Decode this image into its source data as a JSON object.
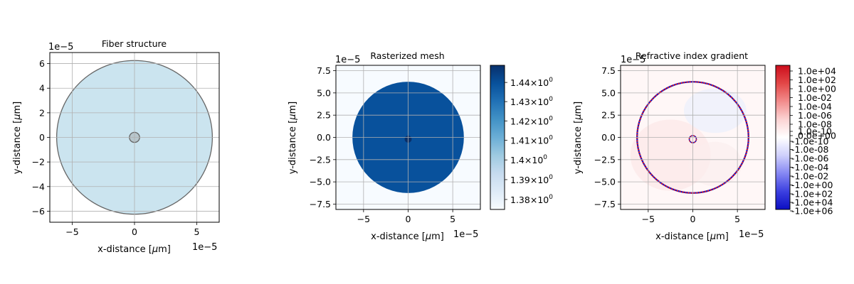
{
  "chart_data": [
    {
      "type": "scatter",
      "title": "Fiber structure",
      "xlabel": "x-distance [$\\mu$m]",
      "ylabel": "y-distance [$\\mu$m]",
      "x_offset_label": "1e−5",
      "y_offset_label": "1e−5",
      "xlim": [
        -6.8,
        6.8
      ],
      "ylim": [
        -6.9,
        6.9
      ],
      "xticks": [
        -5,
        0,
        5
      ],
      "xtick_labels": [
        "−5",
        "0",
        "5"
      ],
      "yticks": [
        -6,
        -4,
        -2,
        0,
        2,
        4,
        6
      ],
      "ytick_labels": [
        "−6",
        "−4",
        "−2",
        "0",
        "2",
        "4",
        "6"
      ],
      "grid": true,
      "shapes": [
        {
          "kind": "cladding-circle",
          "center": [
            0,
            0
          ],
          "radius": 6.25,
          "fill": "#cbe4ef",
          "stroke": "#666666"
        },
        {
          "kind": "core-circle",
          "center": [
            0,
            0
          ],
          "radius": 0.41,
          "fill": "#b7c6cc",
          "stroke": "#666666"
        }
      ]
    },
    {
      "type": "heatmap",
      "title": "Rasterized mesh",
      "xlabel": "x-distance [$\\mu$m]",
      "ylabel": "y-distance [$\\mu$m]",
      "x_offset_label": "1e−5",
      "y_offset_label": "1e−5",
      "xlim": [
        -8.1,
        8.1
      ],
      "ylim": [
        -8.1,
        8.1
      ],
      "xticks": [
        -5,
        0,
        5
      ],
      "xtick_labels": [
        "−5",
        "0",
        "5"
      ],
      "yticks": [
        -7.5,
        -5.0,
        -2.5,
        0.0,
        2.5,
        5.0,
        7.5
      ],
      "ytick_labels": [
        "−7.5",
        "−5.0",
        "−2.5",
        "0.0",
        "2.5",
        "5.0",
        "7.5"
      ],
      "grid": true,
      "regions": [
        {
          "name": "background",
          "value": 1.375
        },
        {
          "name": "cladding",
          "center": [
            0,
            0
          ],
          "radius": 6.25,
          "value": 1.444
        },
        {
          "name": "core",
          "center": [
            0,
            -0.2
          ],
          "radius": 0.4,
          "value": 1.449
        }
      ],
      "colorbar": {
        "scale": "log",
        "range": [
          1.375,
          1.449
        ],
        "ticks": [
          1.38,
          1.39,
          1.4,
          1.41,
          1.42,
          1.43,
          1.44
        ],
        "tick_mantissas": [
          "1.38",
          "1.39",
          "1.4",
          "1.41",
          "1.42",
          "1.43",
          "1.44"
        ],
        "tick_suffix": "×10",
        "tick_exponent": "0",
        "colors": [
          "#f7fbff",
          "#deebf7",
          "#c6dbef",
          "#9ecae1",
          "#6baed6",
          "#4292c6",
          "#2171b5",
          "#08519c",
          "#08306b"
        ]
      }
    },
    {
      "type": "heatmap",
      "title": "Refractive index gradient",
      "xlabel": "x-distance [$\\mu$m]",
      "ylabel": "y-distance [$\\mu$m]",
      "x_offset_label": "1e−5",
      "y_offset_label": "1e−5",
      "xlim": [
        -8.1,
        8.1
      ],
      "ylim": [
        -8.1,
        8.1
      ],
      "xticks": [
        -5,
        0,
        5
      ],
      "xtick_labels": [
        "−5",
        "0",
        "5"
      ],
      "yticks": [
        -7.5,
        -5.0,
        -2.5,
        0.0,
        2.5,
        5.0,
        7.5
      ],
      "ytick_labels": [
        "−7.5",
        "−5.0",
        "−2.5",
        "0.0",
        "2.5",
        "5.0",
        "7.5"
      ],
      "grid": true,
      "rings": [
        {
          "name": "cladding-boundary",
          "center": [
            0,
            0
          ],
          "radius": 6.25
        },
        {
          "name": "core-boundary",
          "center": [
            0,
            -0.2
          ],
          "radius": 0.4
        }
      ],
      "colorbar": {
        "scale": "symlog",
        "colormap": "seismic",
        "labels": [
          "1.0e+04",
          "1.0e+02",
          "1.0e+00",
          "1.0e-02",
          "1.0e-04",
          "1.0e-06",
          "1.0e-08",
          "1.0e-10",
          "0.0e+00",
          "-1.0e-10",
          "-1.0e-08",
          "-1.0e-06",
          "-1.0e-04",
          "-1.0e-02",
          "-1.0e+00",
          "-1.0e+02",
          "-1.0e+04",
          "-1.0e+06"
        ],
        "colors": [
          "#cc0d1c",
          "#e34747",
          "#f28c8c",
          "#fcd3d3",
          "#ffffff",
          "#cfd0fc",
          "#8587f3",
          "#3c40e0",
          "#0b0ec2"
        ]
      }
    }
  ]
}
